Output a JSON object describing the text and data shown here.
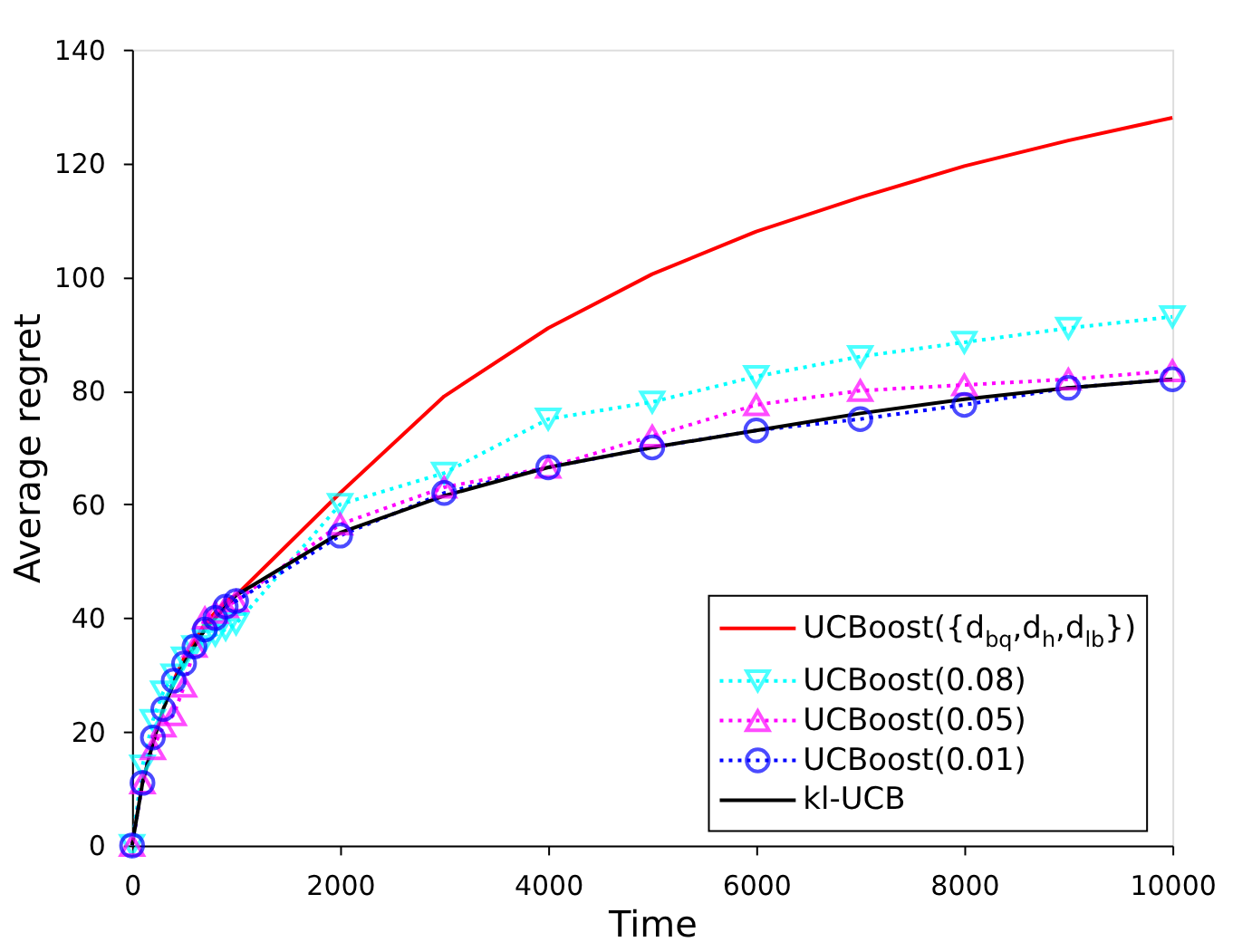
{
  "chart_data": {
    "type": "line",
    "xlabel": "Time",
    "ylabel": "Average regret",
    "x": [
      0,
      100,
      200,
      300,
      400,
      500,
      600,
      700,
      800,
      900,
      1000,
      2000,
      3000,
      4000,
      5000,
      6000,
      7000,
      8000,
      9000,
      10000
    ],
    "series": [
      {
        "name": "UCBoost({d$_{bq}$,d$_{h}$,d$_{lb}$})",
        "color": "#ff0000",
        "marker": "none",
        "line_style": "solid",
        "values": [
          null,
          null,
          null,
          null,
          29,
          33,
          36,
          39,
          41,
          43,
          44,
          62,
          79,
          91,
          100.5,
          108,
          114,
          119.5,
          124,
          128
        ]
      },
      {
        "name": "UCBoost(0.08)",
        "color": "#00ffff",
        "marker": "triangle-down",
        "line_style": "dotted",
        "values": [
          0,
          14,
          22,
          27,
          30,
          33,
          35,
          36,
          37,
          38,
          39,
          60,
          65.5,
          75,
          78,
          82.5,
          86,
          88.5,
          91,
          93
        ]
      },
      {
        "name": "UCBoost(0.05)",
        "color": "#ff00ff",
        "marker": "triangle",
        "line_style": "dotted",
        "values": [
          0,
          11,
          17,
          21,
          23,
          28,
          35,
          40,
          41,
          42,
          43,
          56.5,
          63,
          66.5,
          72,
          77.5,
          80,
          81,
          82,
          83.5
        ]
      },
      {
        "name": "UCBoost(0.01)",
        "color": "#0000ff",
        "marker": "circle",
        "line_style": "dotted",
        "values": [
          0,
          11,
          19,
          24,
          29,
          32,
          35,
          38,
          40,
          42,
          43,
          54.5,
          62,
          66.5,
          70,
          73,
          75,
          77.5,
          80.5,
          82
        ]
      },
      {
        "name": "kl-UCB",
        "color": "#000000",
        "marker": "none",
        "line_style": "solid",
        "values": [
          0,
          11,
          18,
          24,
          28.5,
          32,
          35,
          38,
          40,
          42,
          44,
          55,
          61.5,
          66.5,
          70,
          73,
          76,
          78.5,
          80.5,
          82
        ]
      }
    ],
    "xlim": [
      0,
      10000
    ],
    "xticks": [
      0,
      2000,
      4000,
      6000,
      8000,
      10000
    ],
    "ylim": [
      0,
      140
    ],
    "yticks": [
      0,
      20,
      40,
      60,
      80,
      100,
      120,
      140
    ],
    "grid": false,
    "legend": "bottom right"
  }
}
